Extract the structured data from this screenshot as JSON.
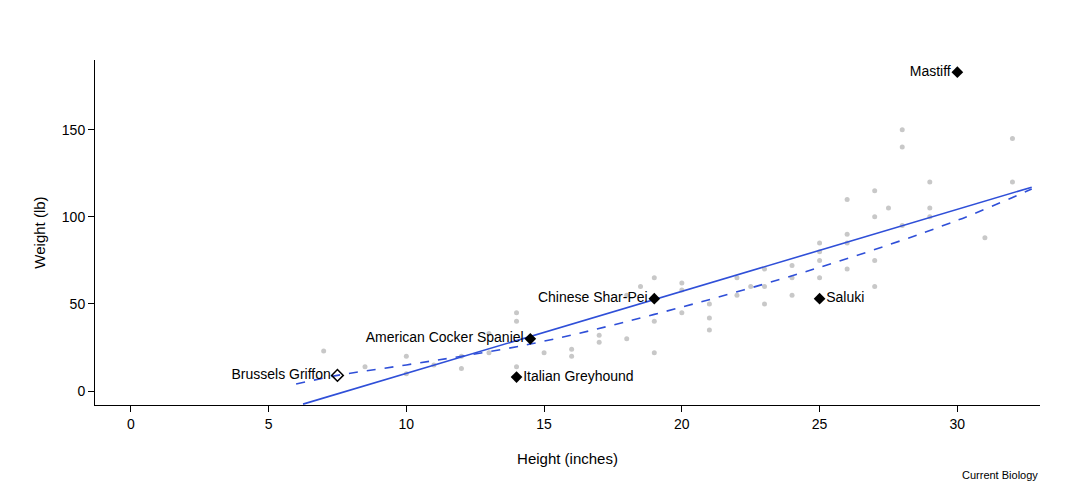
{
  "chart_data": {
    "type": "scatter",
    "x_label": "Height (inches)",
    "y_label": "Weight (lb)",
    "xlim": [
      -1.3,
      33
    ],
    "ylim": [
      -8,
      190
    ],
    "xticks": [
      0,
      5,
      10,
      15,
      20,
      25,
      30
    ],
    "yticks": [
      0,
      50,
      100,
      150
    ],
    "grid": false,
    "annotations": [
      {
        "text": "Current Biology"
      }
    ],
    "series": [
      {
        "type": "scatter",
        "color": "#c8c8c8",
        "marker": "circle",
        "x": [
          7,
          8.5,
          10,
          10,
          11,
          12,
          12,
          13,
          13,
          14,
          14,
          14,
          15,
          16,
          17,
          17,
          18,
          18,
          18.5,
          19,
          19,
          20,
          20,
          20,
          21,
          21,
          21,
          22,
          22,
          22.5,
          23,
          23,
          23,
          24,
          24,
          24,
          25,
          25,
          25,
          25,
          26,
          26,
          26,
          26,
          27,
          27,
          27,
          27,
          28,
          28,
          28,
          29,
          29,
          29,
          31,
          32,
          32,
          27.5,
          19,
          16
        ],
        "y": [
          23,
          14,
          10,
          20,
          15,
          20,
          13,
          22,
          33,
          40,
          45,
          14,
          22,
          20,
          32,
          28,
          30,
          55,
          60,
          40,
          22,
          45,
          58,
          62,
          35,
          42,
          50,
          55,
          65,
          60,
          60,
          70,
          50,
          65,
          72,
          55,
          80,
          85,
          75,
          65,
          70,
          90,
          110,
          85,
          60,
          75,
          100,
          115,
          150,
          140,
          95,
          100,
          105,
          120,
          88,
          145,
          120,
          105,
          65,
          24
        ]
      },
      {
        "type": "line",
        "color": "#2f4fd8",
        "line_style": "solid",
        "x": [
          6.25,
          32.7
        ],
        "y": [
          -7.5,
          117
        ]
      },
      {
        "type": "line",
        "color": "#2f4fd8",
        "line_style": "dash",
        "x": [
          6,
          7.5,
          10,
          14.5,
          19,
          25,
          30,
          32.7
        ],
        "y": [
          4,
          9,
          15,
          27,
          44,
          71,
          98,
          116
        ]
      },
      {
        "type": "scatter",
        "color": "#000000",
        "marker": "diamond",
        "x": [
          30,
          25,
          19,
          14.5,
          14
        ],
        "y": [
          183,
          53,
          53,
          30,
          8
        ],
        "labels": [
          "Mastiff",
          "Saluki",
          "Chinese Shar-Pei",
          "American Cocker Spaniel",
          "Italian Greyhound"
        ]
      },
      {
        "type": "scatter",
        "color": "#000000",
        "marker": "diamond-open",
        "x": [
          7.5
        ],
        "y": [
          9
        ],
        "labels": [
          "Brussels Griffon"
        ]
      }
    ]
  }
}
